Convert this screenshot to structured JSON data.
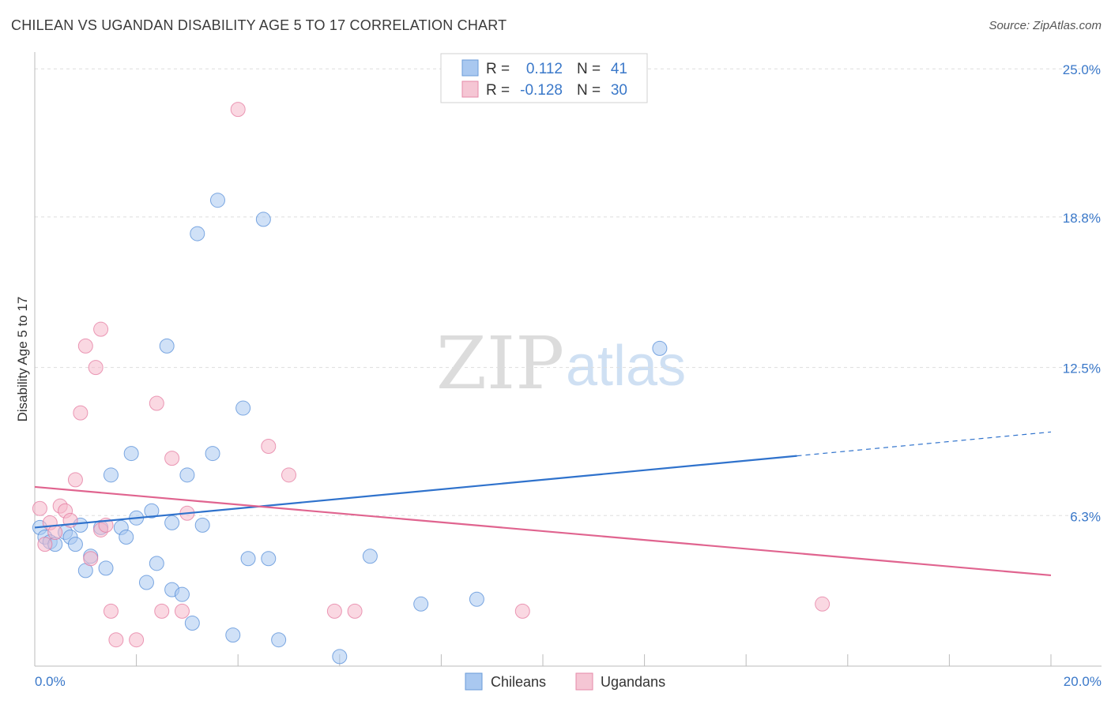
{
  "header": {
    "title": "CHILEAN VS UGANDAN DISABILITY AGE 5 TO 17 CORRELATION CHART",
    "source": "Source: ZipAtlas.com"
  },
  "watermark": {
    "zip": "ZIP",
    "atlas": "atlas"
  },
  "legend": {
    "r_label": "R =",
    "n_label": "N =",
    "rows": [
      {
        "name": "Chileans",
        "r": "0.112",
        "n": "41",
        "color": "#a9c8f0"
      },
      {
        "name": "Ugandans",
        "r": "-0.128",
        "n": "30",
        "color": "#f5b8cb"
      }
    ]
  },
  "chart_data": {
    "type": "scatter",
    "xlabel": "",
    "ylabel": "Disability Age 5 to 17",
    "xlim": [
      0,
      20
    ],
    "ylim": [
      0,
      25.7
    ],
    "x_tick_labels": [
      "0.0%",
      "20.0%"
    ],
    "y_ticks": [
      6.3,
      12.5,
      18.8,
      25.0
    ],
    "y_tick_labels": [
      "6.3%",
      "12.5%",
      "18.8%",
      "25.0%"
    ],
    "series": [
      {
        "name": "Chileans",
        "color": "#4a86d6",
        "fill": "#a9c8f0",
        "trend": {
          "x0": 0,
          "y0": 5.8,
          "x1": 15.0,
          "y1": 8.8,
          "x_dash_end": 20.0,
          "y_dash_end": 9.8,
          "color": "#2f72cc"
        },
        "points": [
          [
            0.1,
            5.8
          ],
          [
            0.2,
            5.4
          ],
          [
            0.3,
            5.2
          ],
          [
            0.4,
            5.1
          ],
          [
            0.6,
            5.6
          ],
          [
            0.7,
            5.4
          ],
          [
            0.8,
            5.1
          ],
          [
            0.9,
            5.9
          ],
          [
            1.0,
            4.0
          ],
          [
            1.1,
            4.6
          ],
          [
            1.3,
            5.8
          ],
          [
            1.4,
            4.1
          ],
          [
            1.5,
            8.0
          ],
          [
            1.7,
            5.8
          ],
          [
            1.8,
            5.4
          ],
          [
            1.9,
            8.9
          ],
          [
            2.0,
            6.2
          ],
          [
            2.2,
            3.5
          ],
          [
            2.3,
            6.5
          ],
          [
            2.4,
            4.3
          ],
          [
            2.6,
            13.4
          ],
          [
            2.7,
            6.0
          ],
          [
            2.7,
            3.2
          ],
          [
            3.0,
            8.0
          ],
          [
            2.9,
            3.0
          ],
          [
            3.1,
            1.8
          ],
          [
            3.2,
            18.1
          ],
          [
            3.3,
            5.9
          ],
          [
            3.5,
            8.9
          ],
          [
            3.6,
            19.5
          ],
          [
            3.9,
            1.3
          ],
          [
            4.1,
            10.8
          ],
          [
            4.2,
            4.5
          ],
          [
            4.6,
            4.5
          ],
          [
            4.5,
            18.7
          ],
          [
            4.8,
            1.1
          ],
          [
            6.0,
            0.4
          ],
          [
            6.6,
            4.6
          ],
          [
            7.6,
            2.6
          ],
          [
            8.7,
            2.8
          ],
          [
            12.3,
            13.3
          ]
        ]
      },
      {
        "name": "Ugandans",
        "color": "#e3729a",
        "fill": "#f5b8cb",
        "trend": {
          "x0": 0,
          "y0": 7.5,
          "x1": 20.0,
          "y1": 3.8,
          "color": "#e0648f"
        },
        "points": [
          [
            0.1,
            6.6
          ],
          [
            0.2,
            5.1
          ],
          [
            0.3,
            6.0
          ],
          [
            0.4,
            5.6
          ],
          [
            0.5,
            6.7
          ],
          [
            0.6,
            6.5
          ],
          [
            0.7,
            6.1
          ],
          [
            0.8,
            7.8
          ],
          [
            0.9,
            10.6
          ],
          [
            1.0,
            13.4
          ],
          [
            1.1,
            4.5
          ],
          [
            1.2,
            12.5
          ],
          [
            1.3,
            5.7
          ],
          [
            1.4,
            5.9
          ],
          [
            1.3,
            14.1
          ],
          [
            1.5,
            2.3
          ],
          [
            1.6,
            1.1
          ],
          [
            2.0,
            1.1
          ],
          [
            2.4,
            11.0
          ],
          [
            2.5,
            2.3
          ],
          [
            2.7,
            8.7
          ],
          [
            2.9,
            2.3
          ],
          [
            3.0,
            6.4
          ],
          [
            4.0,
            23.3
          ],
          [
            4.6,
            9.2
          ],
          [
            5.0,
            8.0
          ],
          [
            6.3,
            2.3
          ],
          [
            5.9,
            2.3
          ],
          [
            9.6,
            2.3
          ],
          [
            15.5,
            2.6
          ]
        ]
      }
    ]
  }
}
